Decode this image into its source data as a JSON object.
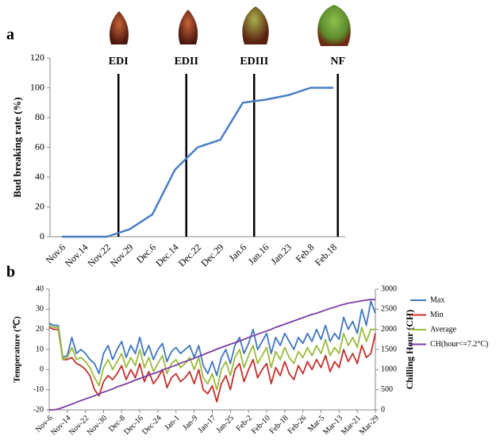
{
  "chart_data": [
    {
      "type": "line",
      "panel_label": "a",
      "ylabel": "Bud breaking rate (%)",
      "categories": [
        "Nov.6",
        "Nov.14",
        "Nov.22",
        "Nov.29",
        "Dec.6",
        "Dec.14",
        "Dec.22",
        "Dec.29",
        "Jan.6",
        "Jan.16",
        "Jan.23",
        "Feb.8",
        "Feb.18"
      ],
      "values": [
        0,
        0,
        0,
        5,
        15,
        45,
        60,
        65,
        90,
        92,
        95,
        100,
        100
      ],
      "color": "#4a7ec4",
      "ylim": [
        0,
        120
      ],
      "yticks": [
        0,
        20,
        40,
        60,
        80,
        100,
        120
      ],
      "annotations": [
        {
          "label": "EDI",
          "x": 2.5
        },
        {
          "label": "EDII",
          "x": 5.5
        },
        {
          "label": "EDIII",
          "x": 8.5
        },
        {
          "label": "NF",
          "x": 12.2
        }
      ]
    },
    {
      "type": "line",
      "panel_label": "b",
      "ylabel": "Temperature (℃)",
      "y2label": "Chilling Hour (CH)",
      "x": [
        0,
        2,
        4,
        6,
        8,
        10,
        12,
        14,
        16,
        18,
        20,
        22,
        24,
        26,
        28,
        30,
        32,
        34,
        36,
        38,
        40,
        42,
        44,
        46,
        48,
        50,
        52,
        54,
        56,
        58,
        60,
        62,
        64,
        66,
        68,
        70,
        72,
        74,
        76,
        78,
        80,
        82,
        84,
        86,
        88,
        90,
        92,
        94,
        96,
        98,
        100,
        102,
        104,
        106,
        108,
        110,
        112,
        114,
        116,
        118,
        120,
        122,
        124,
        126,
        128,
        130,
        132,
        134,
        136,
        138,
        140,
        142,
        144
      ],
      "xlim": [
        0,
        144
      ],
      "xticks": [
        {
          "value": 0,
          "label": "Nov-6"
        },
        {
          "value": 8,
          "label": "Nov-14"
        },
        {
          "value": 16,
          "label": "Nov-22"
        },
        {
          "value": 24,
          "label": "Nov-30"
        },
        {
          "value": 32,
          "label": "Dec-8"
        },
        {
          "value": 40,
          "label": "Dec-16"
        },
        {
          "value": 48,
          "label": "Dec-24"
        },
        {
          "value": 56,
          "label": "Jan-1"
        },
        {
          "value": 64,
          "label": "Jan-9"
        },
        {
          "value": 72,
          "label": "Jan-17"
        },
        {
          "value": 80,
          "label": "Jan-25"
        },
        {
          "value": 88,
          "label": "Feb-2"
        },
        {
          "value": 96,
          "label": "Feb-10"
        },
        {
          "value": 104,
          "label": "Feb-18"
        },
        {
          "value": 112,
          "label": "Feb-26"
        },
        {
          "value": 120,
          "label": "Mar-5"
        },
        {
          "value": 128,
          "label": "Mar-13"
        },
        {
          "value": 136,
          "label": "Mar-21"
        },
        {
          "value": 144,
          "label": "Mar-29"
        }
      ],
      "ylim": [
        -20,
        40
      ],
      "yticks": [
        -20,
        -10,
        0,
        10,
        20,
        30,
        40
      ],
      "y2lim": [
        0,
        3000
      ],
      "y2ticks": [
        0,
        500,
        1000,
        1500,
        2000,
        2500,
        3000
      ],
      "legend": "right",
      "series": [
        {
          "name": "Max",
          "color": "#3f76c0",
          "values": [
            23,
            22,
            22,
            6,
            7,
            16,
            8,
            10,
            8,
            5,
            3,
            -2,
            8,
            12,
            5,
            10,
            14,
            6,
            12,
            8,
            16,
            7,
            12,
            5,
            10,
            13,
            4,
            9,
            11,
            8,
            10,
            12,
            6,
            12,
            2,
            -2,
            4,
            -3,
            6,
            10,
            3,
            12,
            16,
            8,
            13,
            20,
            10,
            14,
            18,
            8,
            16,
            12,
            18,
            14,
            10,
            16,
            13,
            18,
            14,
            20,
            15,
            22,
            14,
            18,
            15,
            26,
            20,
            24,
            18,
            30,
            22,
            34,
            28
          ]
        },
        {
          "name": "Min",
          "color": "#c3302b",
          "values": [
            21,
            20,
            20,
            5,
            5,
            6,
            3,
            2,
            0,
            -3,
            -10,
            -13,
            -6,
            -3,
            -5,
            -2,
            2,
            -5,
            0,
            -4,
            3,
            -6,
            -1,
            -7,
            -4,
            0,
            -9,
            -4,
            -2,
            -6,
            -4,
            -1,
            -7,
            0,
            -10,
            -12,
            -8,
            -16,
            -7,
            -3,
            -10,
            0,
            3,
            -6,
            0,
            5,
            -4,
            0,
            3,
            -7,
            1,
            -3,
            4,
            -2,
            -5,
            2,
            -2,
            4,
            0,
            5,
            1,
            7,
            -1,
            4,
            1,
            10,
            4,
            8,
            3,
            12,
            6,
            8,
            18
          ]
        },
        {
          "name": "Average",
          "color": "#9bbb3b",
          "values": [
            22,
            21,
            21,
            5,
            6,
            11,
            5,
            6,
            4,
            1,
            -4,
            -8,
            1,
            5,
            0,
            4,
            8,
            1,
            6,
            2,
            10,
            1,
            6,
            -1,
            3,
            7,
            -2,
            3,
            5,
            1,
            3,
            6,
            0,
            6,
            -4,
            -7,
            -2,
            -10,
            0,
            4,
            -3,
            6,
            10,
            1,
            7,
            12,
            3,
            7,
            11,
            1,
            9,
            5,
            11,
            6,
            3,
            9,
            6,
            11,
            7,
            12,
            8,
            15,
            7,
            11,
            8,
            18,
            12,
            16,
            11,
            21,
            14,
            20,
            20
          ]
        },
        {
          "name": "CH(hour<=7.2°C)",
          "color": "#7b3fa2",
          "axis": "y2",
          "values": [
            0,
            0,
            20,
            60,
            100,
            140,
            190,
            230,
            270,
            310,
            350,
            400,
            440,
            480,
            520,
            570,
            610,
            650,
            690,
            740,
            780,
            820,
            860,
            900,
            940,
            990,
            1030,
            1070,
            1110,
            1160,
            1200,
            1240,
            1280,
            1330,
            1370,
            1420,
            1460,
            1510,
            1550,
            1590,
            1630,
            1670,
            1710,
            1750,
            1800,
            1840,
            1880,
            1920,
            1960,
            2000,
            2050,
            2090,
            2130,
            2170,
            2210,
            2250,
            2290,
            2330,
            2370,
            2400,
            2440,
            2480,
            2520,
            2550,
            2590,
            2620,
            2650,
            2670,
            2690,
            2710,
            2730,
            2740,
            2740
          ]
        }
      ]
    }
  ]
}
